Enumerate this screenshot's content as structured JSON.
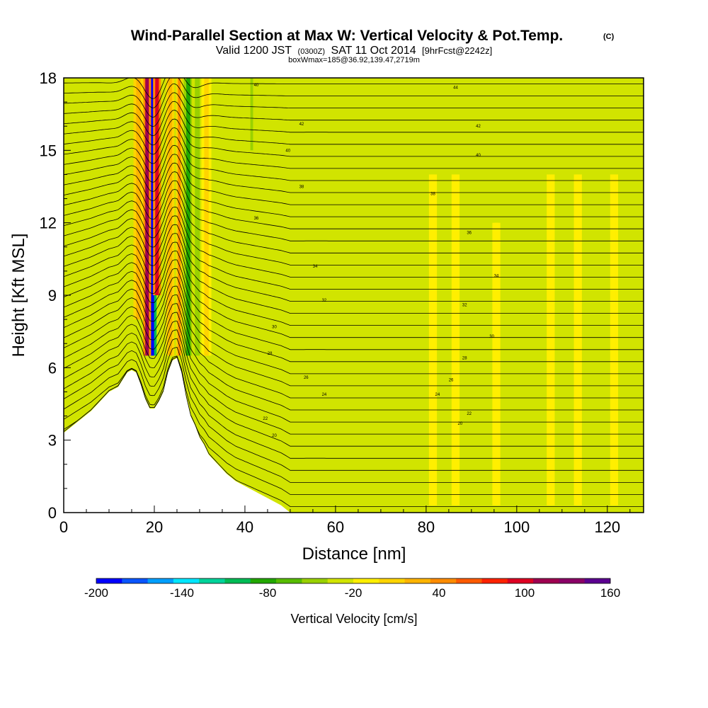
{
  "chart_data": {
    "type": "heatmap",
    "title": "Wind-Parallel Section at Max W: Vertical Velocity & Pot.Temp.",
    "title_mark": "(C)",
    "subtitle": {
      "valid": "Valid 1200 JST",
      "utc": "(0300Z)",
      "date": "SAT 11 Oct 2014",
      "fcst": "[9hrFcst@2242z]"
    },
    "box_info": "boxWmax=185@36.92,139.47,2719m",
    "xlabel": "Distance [nm]",
    "ylabel": "Height [Kft MSL]",
    "xlim": [
      0,
      128
    ],
    "ylim": [
      0,
      18
    ],
    "xticks": [
      0,
      20,
      40,
      60,
      80,
      100,
      120
    ],
    "yticks": [
      0,
      3,
      6,
      9,
      12,
      15,
      18
    ],
    "terrain": {
      "x": [
        0,
        2,
        4,
        6,
        8,
        10,
        12,
        13,
        14,
        15,
        16,
        17,
        18,
        19,
        20,
        21,
        22,
        23,
        24,
        25,
        26,
        27,
        28,
        29,
        30,
        31,
        32,
        34,
        36,
        38,
        40,
        42,
        44,
        46,
        48,
        50,
        128
      ],
      "height_kft": [
        3.3,
        3.6,
        3.9,
        4.2,
        4.6,
        5.0,
        5.2,
        5.5,
        5.8,
        5.9,
        5.8,
        5.3,
        4.7,
        4.3,
        4.3,
        4.6,
        5.0,
        5.8,
        6.3,
        6.4,
        5.8,
        4.8,
        4.0,
        3.6,
        3.1,
        2.8,
        2.4,
        2.0,
        1.6,
        1.3,
        1.1,
        0.9,
        0.7,
        0.5,
        0.3,
        0.0,
        0.0
      ]
    },
    "vertical_velocity": {
      "name": "Vertical Velocity [cm/s]",
      "background_value": -10,
      "plumes": [
        {
          "x": 19.5,
          "width": 0.9,
          "z0": 6.5,
          "z1": 18,
          "peak": -200
        },
        {
          "x": 18.4,
          "width": 0.8,
          "z0": 6.5,
          "z1": 18,
          "peak": 140
        },
        {
          "x": 20.6,
          "width": 0.8,
          "z0": 9,
          "z1": 18,
          "peak": 120
        },
        {
          "x": 16.5,
          "width": 1.0,
          "z0": 8,
          "z1": 18,
          "peak": 40
        },
        {
          "x": 23.5,
          "width": 0.8,
          "z0": 6.5,
          "z1": 18,
          "peak": 50
        },
        {
          "x": 25.5,
          "width": 0.6,
          "z0": 6.5,
          "z1": 18,
          "peak": 60
        },
        {
          "x": 27.5,
          "width": 0.9,
          "z0": 6.5,
          "z1": 18,
          "peak": -70
        },
        {
          "x": 29.5,
          "width": 1.1,
          "z0": 6.5,
          "z1": 18,
          "peak": -40
        },
        {
          "x": 31.5,
          "width": 1.0,
          "z0": 6.5,
          "z1": 18,
          "peak": 20
        },
        {
          "x": 41.5,
          "width": 0.6,
          "z0": 15,
          "z1": 18,
          "peak": -40
        },
        {
          "x": 81.5,
          "width": 0.8,
          "z0": 0.3,
          "z1": 14,
          "peak": 15
        },
        {
          "x": 86.5,
          "width": 0.8,
          "z0": 0.3,
          "z1": 14,
          "peak": 15
        },
        {
          "x": 95.5,
          "width": 0.8,
          "z0": 0.3,
          "z1": 12,
          "peak": 15
        },
        {
          "x": 107.5,
          "width": 0.8,
          "z0": 0.3,
          "z1": 14,
          "peak": 15
        },
        {
          "x": 113.5,
          "width": 0.8,
          "z0": 0.3,
          "z1": 14,
          "peak": 15
        },
        {
          "x": 121.5,
          "width": 0.8,
          "z0": 0.3,
          "z1": 14,
          "peak": 15
        }
      ]
    },
    "potential_temperature": {
      "name": "Pot.Temp.",
      "contour_count": 36,
      "labels": [
        {
          "text": "40",
          "x": 42.5,
          "z": 17.7
        },
        {
          "text": "44",
          "x": 86.5,
          "z": 17.6
        },
        {
          "text": "42",
          "x": 52.5,
          "z": 16.1
        },
        {
          "text": "42",
          "x": 91.5,
          "z": 16.0
        },
        {
          "text": "40",
          "x": 49.5,
          "z": 15.0
        },
        {
          "text": "40",
          "x": 91.5,
          "z": 14.8
        },
        {
          "text": "38",
          "x": 52.5,
          "z": 13.5
        },
        {
          "text": "38",
          "x": 81.5,
          "z": 13.2
        },
        {
          "text": "36",
          "x": 42.5,
          "z": 12.2
        },
        {
          "text": "36",
          "x": 89.5,
          "z": 11.6
        },
        {
          "text": "34",
          "x": 55.5,
          "z": 10.2
        },
        {
          "text": "34",
          "x": 95.5,
          "z": 9.8
        },
        {
          "text": "32",
          "x": 57.5,
          "z": 8.8
        },
        {
          "text": "32",
          "x": 88.5,
          "z": 8.6
        },
        {
          "text": "30",
          "x": 46.5,
          "z": 7.7
        },
        {
          "text": "30",
          "x": 94.5,
          "z": 7.3
        },
        {
          "text": "28",
          "x": 45.5,
          "z": 6.6
        },
        {
          "text": "28",
          "x": 88.5,
          "z": 6.4
        },
        {
          "text": "26",
          "x": 53.5,
          "z": 5.6
        },
        {
          "text": "26",
          "x": 85.5,
          "z": 5.5
        },
        {
          "text": "24",
          "x": 57.5,
          "z": 4.9
        },
        {
          "text": "24",
          "x": 82.5,
          "z": 4.9
        },
        {
          "text": "22",
          "x": 44.5,
          "z": 3.9
        },
        {
          "text": "22",
          "x": 89.5,
          "z": 4.1
        },
        {
          "text": "20",
          "x": 46.5,
          "z": 3.2
        },
        {
          "text": "20",
          "x": 87.5,
          "z": 3.7
        }
      ]
    },
    "colorbar": {
      "min": -200,
      "max": 160,
      "step": 20,
      "tick_labels": [
        "-200",
        "-140",
        "-80",
        "-20",
        "40",
        "100",
        "160"
      ],
      "tick_values": [
        -200,
        -140,
        -80,
        -20,
        40,
        100,
        160
      ],
      "colors": [
        "#0000ff",
        "#0a55ff",
        "#009fff",
        "#00e6ff",
        "#00d39a",
        "#00bb55",
        "#22a700",
        "#57bc00",
        "#99d100",
        "#d1e400",
        "#ffef00",
        "#ffd400",
        "#ffb400",
        "#ff8c00",
        "#ff5a00",
        "#ff2200",
        "#dd0022",
        "#9e0050",
        "#8a0066",
        "#5b0090"
      ],
      "label": "Vertical Velocity [cm/s]"
    }
  }
}
